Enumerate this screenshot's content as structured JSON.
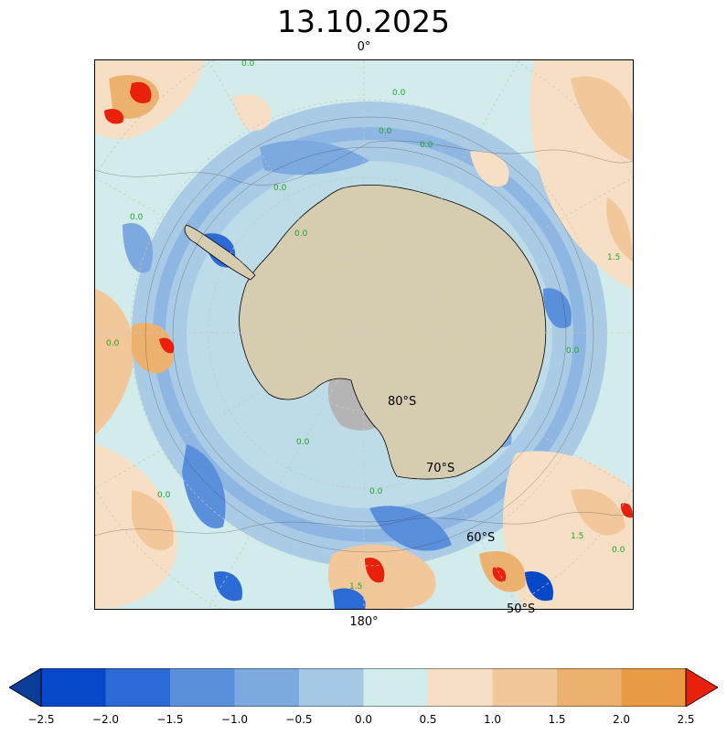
{
  "title": "13.10.2025",
  "map": {
    "projection": "south-polar-stereographic",
    "longitude_labels": {
      "top": "0°",
      "bottom": "180°"
    },
    "latitude_labels": [
      "80°S",
      "70°S",
      "60°S",
      "50°S"
    ],
    "contour_labels": [
      "0.0",
      "1.5"
    ],
    "colors": {
      "land": "#d6cdb0",
      "ice_shelf": "#b4b4b4",
      "ocean_base": "#cfeaea",
      "graticule": "#c8c8c8",
      "contour_label": "#22a522"
    }
  },
  "colorbar": {
    "type": "diverging",
    "extend": "both",
    "ticks": [
      "−2.5",
      "−2.0",
      "−1.5",
      "−1.0",
      "−0.5",
      "0.0",
      "0.5",
      "1.0",
      "1.5",
      "2.0",
      "2.5"
    ],
    "under_color": "#0a3d9a",
    "over_color": "#e8200c",
    "bin_colors": [
      "#0648c8",
      "#2c6ad6",
      "#5a8fdc",
      "#7ba9e0",
      "#a5c8e4",
      "#d2ecec",
      "#f6dfc4",
      "#f2c89a",
      "#ecb16e",
      "#e89a44"
    ]
  }
}
